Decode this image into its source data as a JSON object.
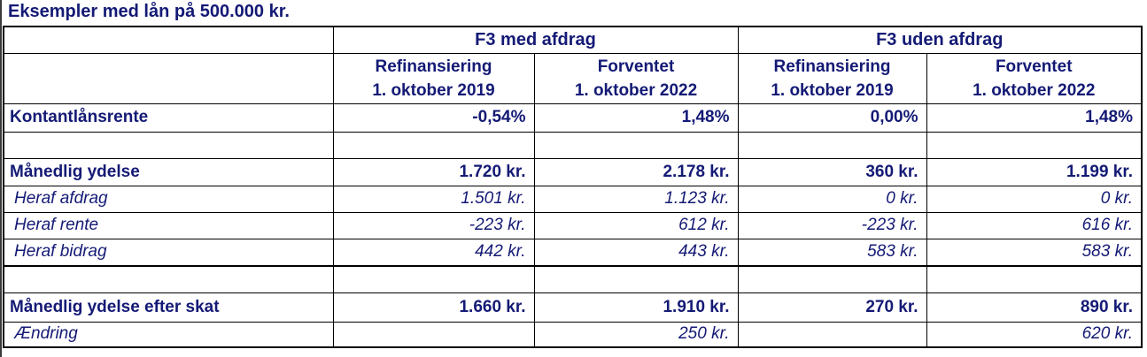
{
  "title": "Eksempler med lån på 500.000 kr.",
  "colors": {
    "header_orange": "#FFC000",
    "header_gray": "#D5D1C9",
    "text_navy": "#141A75",
    "grid_black": "#000000"
  },
  "groups": [
    {
      "label": "F3 med afdrag"
    },
    {
      "label": "F3 uden afdrag"
    }
  ],
  "subheaders": [
    {
      "line1": "Refinansiering",
      "line2": "1. oktober 2019"
    },
    {
      "line1": "Forventet",
      "line2": "1. oktober 2022"
    },
    {
      "line1": "Refinansiering",
      "line2": "1. oktober 2019"
    },
    {
      "line1": "Forventet",
      "line2": "1. oktober 2022"
    }
  ],
  "rows": [
    {
      "label": "Kontantlånsrente",
      "values": [
        "-0,54%",
        "1,48%",
        "0,00%",
        "1,48%"
      ]
    },
    {
      "label": "",
      "values": [
        "",
        "",
        "",
        ""
      ]
    },
    {
      "label": "Månedlig ydelse",
      "values": [
        "1.720 kr.",
        "2.178 kr.",
        "360 kr.",
        "1.199 kr."
      ]
    },
    {
      "label": "Heraf afdrag",
      "values": [
        "1.501 kr.",
        "1.123 kr.",
        "0 kr.",
        "0 kr."
      ]
    },
    {
      "label": "Heraf rente",
      "values": [
        "-223 kr.",
        "612 kr.",
        "-223 kr.",
        "616 kr."
      ]
    },
    {
      "label": "Heraf bidrag",
      "values": [
        "442 kr.",
        "443 kr.",
        "583 kr.",
        "583 kr."
      ]
    },
    {
      "label": "",
      "values": [
        "",
        "",
        "",
        ""
      ]
    },
    {
      "label": "Månedlig ydelse efter skat",
      "values": [
        "1.660 kr.",
        "1.910 kr.",
        "270 kr.",
        "890 kr."
      ]
    },
    {
      "label": "Ændring",
      "values": [
        "",
        "250 kr.",
        "",
        "620 kr."
      ]
    }
  ],
  "chart_data": {
    "type": "table",
    "title": "Eksempler med lån på 500.000 kr.",
    "column_groups": [
      "F3 med afdrag",
      "F3 uden afdrag"
    ],
    "columns": [
      "F3 med afdrag — Refinansiering 1. oktober 2019",
      "F3 med afdrag — Forventet 1. oktober 2022",
      "F3 uden afdrag — Refinansiering 1. oktober 2019",
      "F3 uden afdrag — Forventet 1. oktober 2022"
    ],
    "rows": [
      {
        "label": "Kontantlånsrente",
        "values": [
          "-0,54%",
          "1,48%",
          "0,00%",
          "1,48%"
        ]
      },
      {
        "label": "Månedlig ydelse",
        "values": [
          "1.720 kr.",
          "2.178 kr.",
          "360 kr.",
          "1.199 kr."
        ]
      },
      {
        "label": "Heraf afdrag",
        "values": [
          "1.501 kr.",
          "1.123 kr.",
          "0 kr.",
          "0 kr."
        ]
      },
      {
        "label": "Heraf rente",
        "values": [
          "-223 kr.",
          "612 kr.",
          "-223 kr.",
          "616 kr."
        ]
      },
      {
        "label": "Heraf bidrag",
        "values": [
          "442 kr.",
          "443 kr.",
          "583 kr.",
          "583 kr."
        ]
      },
      {
        "label": "Månedlig ydelse efter skat",
        "values": [
          "1.660 kr.",
          "1.910 kr.",
          "270 kr.",
          "890 kr."
        ]
      },
      {
        "label": "Ændring",
        "values": [
          null,
          "250 kr.",
          null,
          "620 kr."
        ]
      }
    ]
  }
}
